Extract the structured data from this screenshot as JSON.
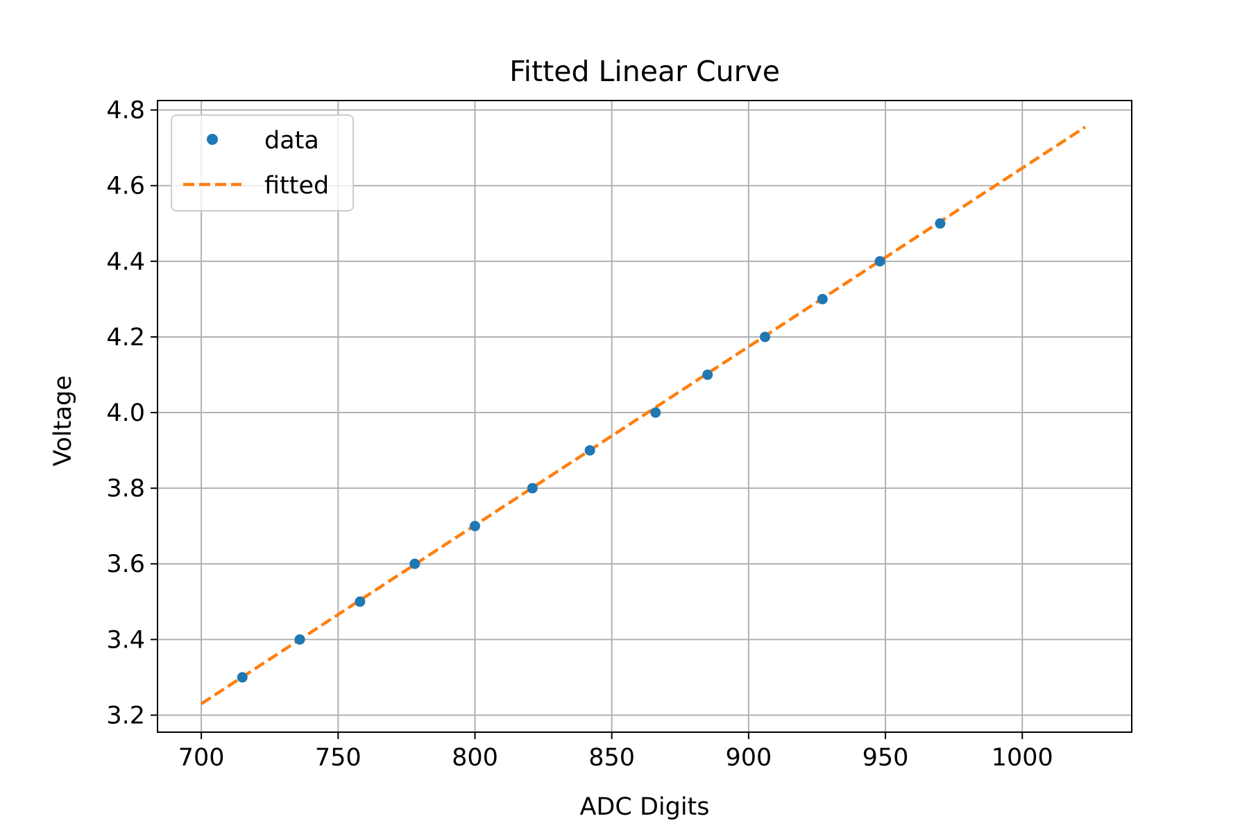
{
  "chart_data": {
    "type": "scatter",
    "title": "Fitted Linear Curve",
    "xlabel": "ADC Digits",
    "ylabel": "Voltage",
    "xlim": [
      684,
      1040
    ],
    "ylim": [
      3.155,
      4.825
    ],
    "xticks": [
      700,
      750,
      800,
      850,
      900,
      950,
      1000
    ],
    "yticks": [
      3.2,
      3.4,
      3.6,
      3.8,
      4.0,
      4.2,
      4.4,
      4.6,
      4.8
    ],
    "xtick_labels": [
      "700",
      "750",
      "800",
      "850",
      "900",
      "950",
      "1000"
    ],
    "ytick_labels": [
      "3.2",
      "3.4",
      "3.6",
      "3.8",
      "4.0",
      "4.2",
      "4.4",
      "4.6",
      "4.8"
    ],
    "grid": true,
    "legend_position": "upper-left",
    "series": [
      {
        "name": "data",
        "kind": "points",
        "color": "#1f77b4",
        "x": [
          715,
          736,
          758,
          778,
          800,
          821,
          842,
          866,
          885,
          906,
          927,
          948,
          970
        ],
        "y": [
          3.3,
          3.4,
          3.5,
          3.6,
          3.7,
          3.8,
          3.9,
          4.0,
          4.1,
          4.2,
          4.3,
          4.4,
          4.5
        ]
      },
      {
        "name": "fitted",
        "kind": "dashed-line",
        "color": "#ff7f0e",
        "x": [
          700,
          1023
        ],
        "y": [
          3.23,
          4.755
        ]
      }
    ]
  }
}
